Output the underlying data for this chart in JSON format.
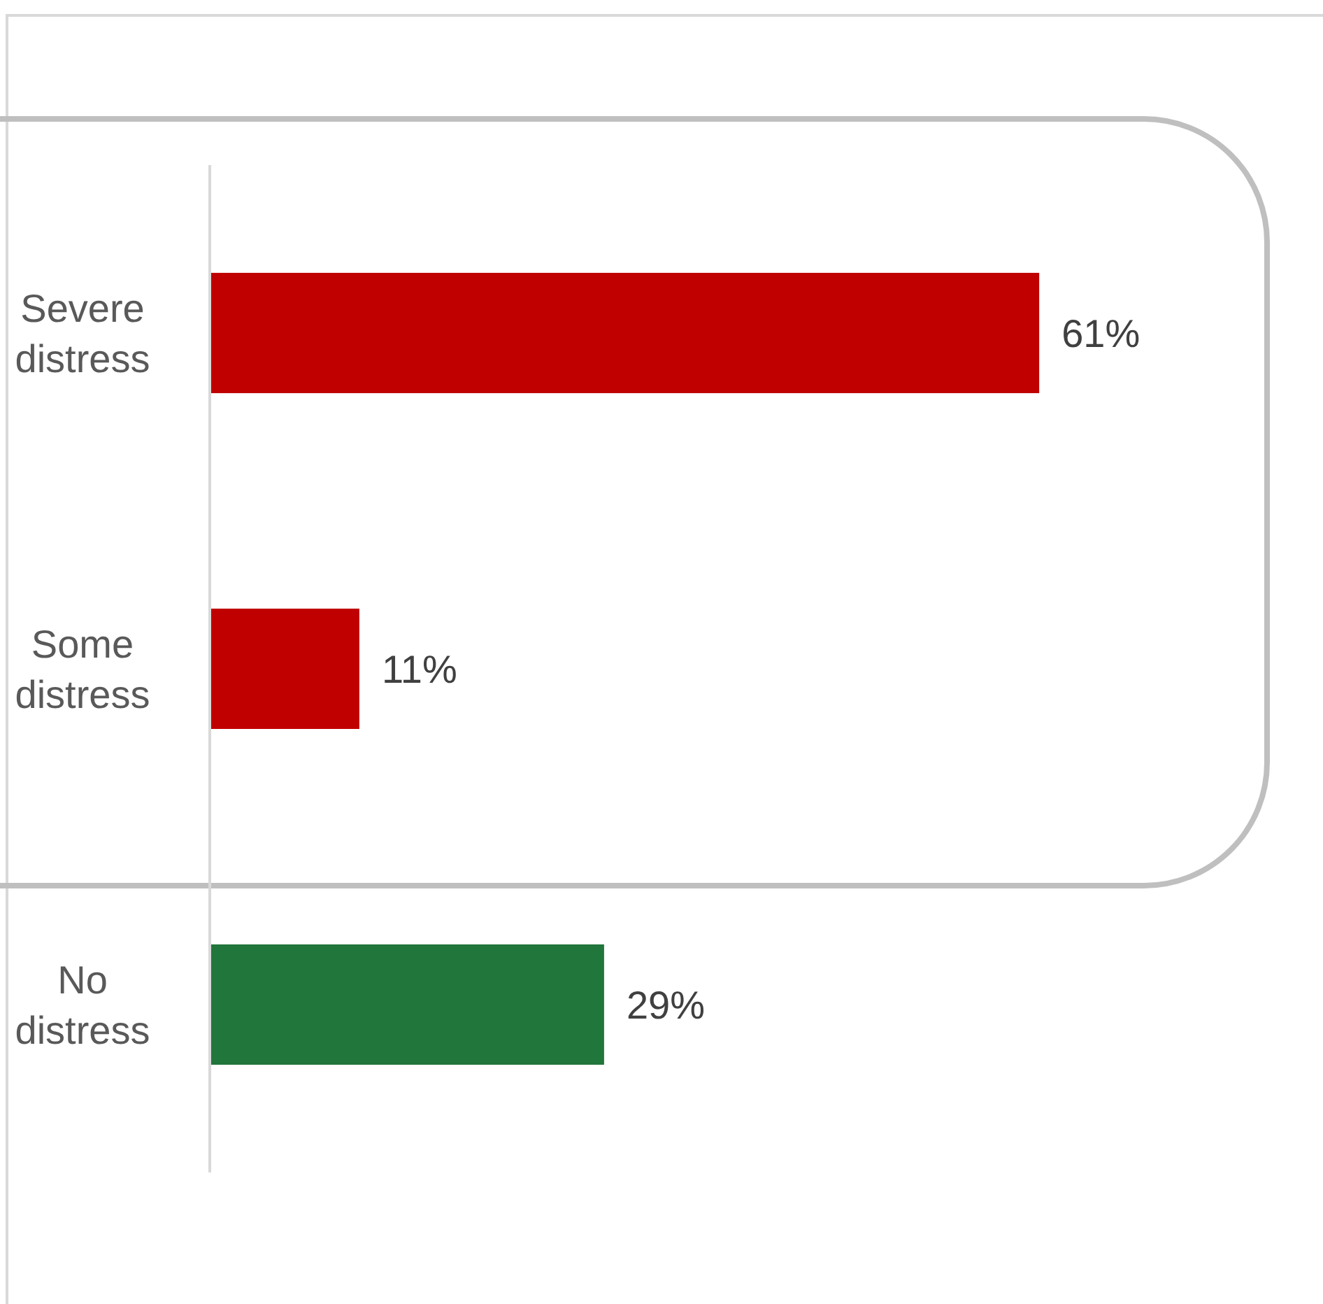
{
  "chart_data": {
    "type": "bar",
    "orientation": "horizontal",
    "categories": [
      "Severe distress",
      "Some distress",
      "No distress"
    ],
    "values": [
      61,
      11,
      29
    ],
    "colors": [
      "#c00000",
      "#c00000",
      "#21763b"
    ],
    "value_labels": [
      "61%",
      "11%",
      "29%"
    ]
  }
}
